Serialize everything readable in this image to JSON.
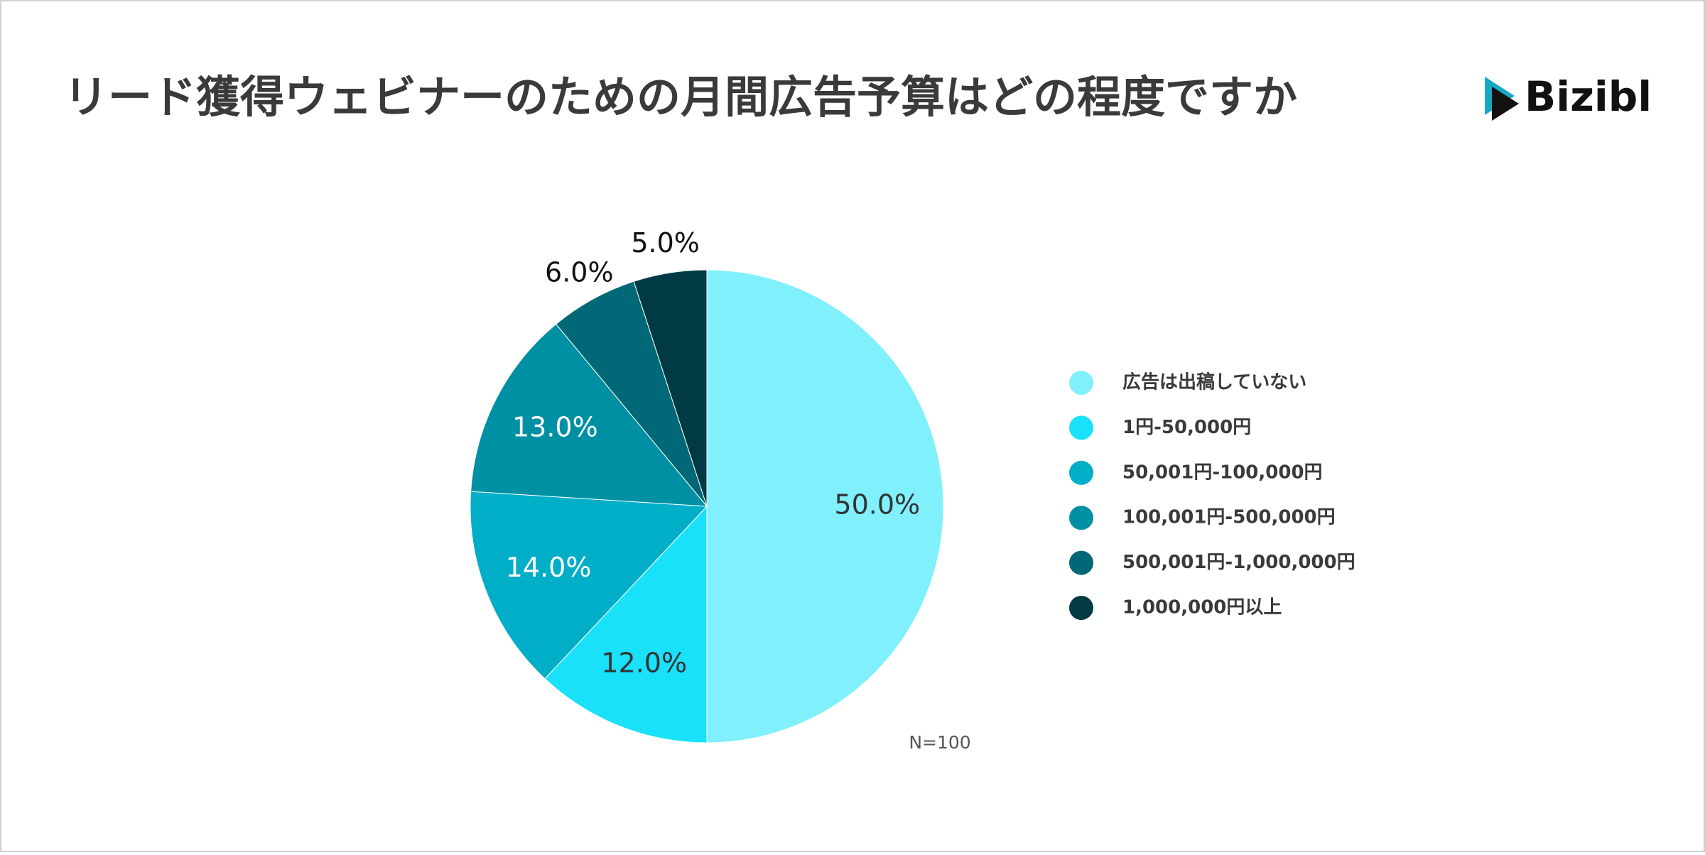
{
  "chart_data": {
    "type": "pie",
    "title": "リード獲得ウェビナーのための月間広告予算はどの程度ですか",
    "categories": [
      "広告は出稿していない",
      "1円-50,000円",
      "50,001円-100,000円",
      "100,001円-500,000円",
      "500,001円-1,000,000円",
      "1,000,000円以上"
    ],
    "values": [
      50,
      12,
      14,
      13,
      6,
      5
    ],
    "value_labels": [
      "50.0%",
      "12.0%",
      "14.0%",
      "13.0%",
      "6.0%",
      "5.0%"
    ],
    "colors": [
      "#80f0fd",
      "#19e1f9",
      "#00aec7",
      "#0090a3",
      "#006876",
      "#003a44"
    ],
    "annotation": "N=100",
    "legend": "right"
  },
  "logo": "Bizibl"
}
